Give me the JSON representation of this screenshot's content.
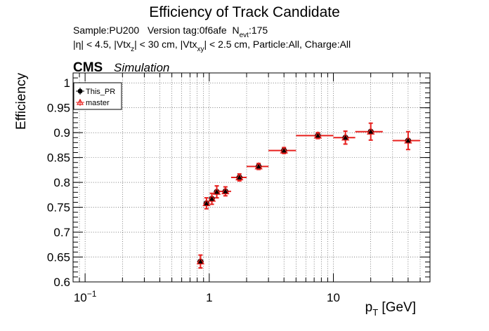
{
  "chart_data": {
    "type": "scatter",
    "title": "Efficiency of Track Candidate",
    "subtitle_line1_main": "Sample:PU200   Version tag:0f6afe  N",
    "subtitle_line1_sub": "evt",
    "subtitle_line1_end": ":175",
    "subtitle_line2": [
      {
        "t": "|η| < 4.5, |Vtx",
        "sub": false
      },
      {
        "t": "z",
        "sub": true
      },
      {
        "t": "| < 30 cm, |Vtx",
        "sub": false
      },
      {
        "t": "xy",
        "sub": true
      },
      {
        "t": "| < 2.5 cm, Particle:All, Charge:All",
        "sub": false
      }
    ],
    "cms_label": "CMS",
    "cms_extra": "Simulation",
    "xlabel_main": "p",
    "xlabel_sub": "T",
    "xlabel_end": " [GeV]",
    "ylabel": "Efficiency",
    "xscale": "log",
    "xlim": [
      0.08,
      60
    ],
    "ylim": [
      0.6,
      1.02
    ],
    "x_ticks": [
      {
        "value": 0.1,
        "base": "10",
        "exp": "−1"
      },
      {
        "value": 1,
        "base": "1",
        "exp": ""
      },
      {
        "value": 10,
        "base": "10",
        "exp": ""
      }
    ],
    "y_ticks": [
      {
        "value": 0.6,
        "label": "0.6"
      },
      {
        "value": 0.65,
        "label": "0.65"
      },
      {
        "value": 0.7,
        "label": "0.7"
      },
      {
        "value": 0.75,
        "label": "0.75"
      },
      {
        "value": 0.8,
        "label": "0.8"
      },
      {
        "value": 0.85,
        "label": "0.85"
      },
      {
        "value": 0.9,
        "label": "0.9"
      },
      {
        "value": 0.95,
        "label": "0.95"
      },
      {
        "value": 1,
        "label": "1"
      }
    ],
    "grid": true,
    "legend_position": "top-left",
    "series": [
      {
        "name": "This_PR",
        "color": "#000000",
        "marker": "circle"
      },
      {
        "name": "master",
        "color": "#e8201e",
        "marker": "triangle-open"
      }
    ],
    "points": [
      {
        "x": 0.85,
        "xlo": 0.8,
        "xhi": 0.9,
        "y": 0.641,
        "ey": 0.013
      },
      {
        "x": 0.95,
        "xlo": 0.9,
        "xhi": 1.0,
        "y": 0.758,
        "ey": 0.011
      },
      {
        "x": 1.05,
        "xlo": 1.0,
        "xhi": 1.1,
        "y": 0.767,
        "ey": 0.011
      },
      {
        "x": 1.15,
        "xlo": 1.1,
        "xhi": 1.2,
        "y": 0.781,
        "ey": 0.012
      },
      {
        "x": 1.35,
        "xlo": 1.2,
        "xhi": 1.5,
        "y": 0.782,
        "ey": 0.009
      },
      {
        "x": 1.75,
        "xlo": 1.5,
        "xhi": 2.0,
        "y": 0.81,
        "ey": 0.007
      },
      {
        "x": 2.5,
        "xlo": 2.0,
        "xhi": 3.0,
        "y": 0.832,
        "ey": 0.006
      },
      {
        "x": 4.0,
        "xlo": 3.0,
        "xhi": 5.0,
        "y": 0.864,
        "ey": 0.006
      },
      {
        "x": 7.5,
        "xlo": 5.0,
        "xhi": 10.0,
        "y": 0.894,
        "ey": 0.006
      },
      {
        "x": 12.5,
        "xlo": 10.0,
        "xhi": 15.0,
        "y": 0.89,
        "ey": 0.013
      },
      {
        "x": 20.0,
        "xlo": 15.0,
        "xhi": 25.0,
        "y": 0.902,
        "ey": 0.017
      },
      {
        "x": 40.0,
        "xlo": 30.0,
        "xhi": 50.0,
        "y": 0.884,
        "ey": 0.018
      }
    ]
  }
}
